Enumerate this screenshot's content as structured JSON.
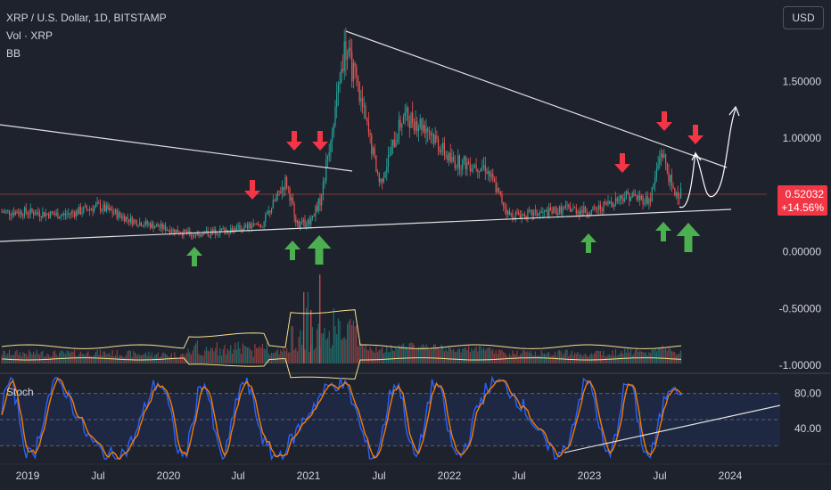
{
  "header": {
    "symbol_title": "XRP / U.S. Dollar, 1D, BITSTAMP",
    "volume_label": "Vol · XRP",
    "bb_label": "BB",
    "currency_button": "USD",
    "stoch_label": "Stoch"
  },
  "price_badge": {
    "price": "0.52032",
    "change": "+14.56%"
  },
  "colors": {
    "background": "#1e222d",
    "up": "#26a69a",
    "down": "#ef5350",
    "bollinger": "#f7e08a",
    "stoch_k": "#2962ff",
    "stoch_d": "#f57c00",
    "arrow_up": "#4caf50",
    "arrow_down": "#f23645",
    "trendline": "#e0e0e0",
    "badge": "#f23645"
  },
  "chart_data": {
    "type": "line",
    "title": "XRP / U.S. Dollar, 1D, BITSTAMP",
    "x_ticks": [
      "2019",
      "Jul",
      "2020",
      "Jul",
      "2021",
      "Jul",
      "2022",
      "Jul",
      "2023",
      "Jul",
      "2024"
    ],
    "price_axis": {
      "ticks": [
        "1.50000",
        "1.00000",
        "0.50000",
        "0.00000",
        "-0.50000",
        "-1.00000"
      ],
      "range": [
        -1.05,
        1.95
      ]
    },
    "stoch_axis": {
      "ticks": [
        "80.00",
        "40.00"
      ],
      "range": [
        0,
        100
      ],
      "band": [
        20,
        80
      ]
    },
    "price_series": {
      "name": "XRP",
      "x": [
        "2019-01",
        "2019-04",
        "2019-07",
        "2019-10",
        "2020-01",
        "2020-03",
        "2020-06",
        "2020-09",
        "2020-11",
        "2020-12",
        "2021-01",
        "2021-02",
        "2021-04",
        "2021-05",
        "2021-07",
        "2021-09",
        "2021-11",
        "2022-01",
        "2022-04",
        "2022-06",
        "2022-09",
        "2022-11",
        "2023-01",
        "2023-04",
        "2023-06",
        "2023-07",
        "2023-08"
      ],
      "y": [
        0.35,
        0.32,
        0.4,
        0.27,
        0.2,
        0.15,
        0.19,
        0.24,
        0.63,
        0.23,
        0.27,
        0.47,
        1.8,
        1.5,
        0.6,
        1.2,
        1.1,
        0.8,
        0.75,
        0.32,
        0.34,
        0.38,
        0.35,
        0.5,
        0.45,
        0.9,
        0.52
      ]
    },
    "annotations": {
      "down_arrows": 7,
      "up_arrows": 6,
      "projection": "curved path to about 1.30 (late 2023)"
    }
  }
}
